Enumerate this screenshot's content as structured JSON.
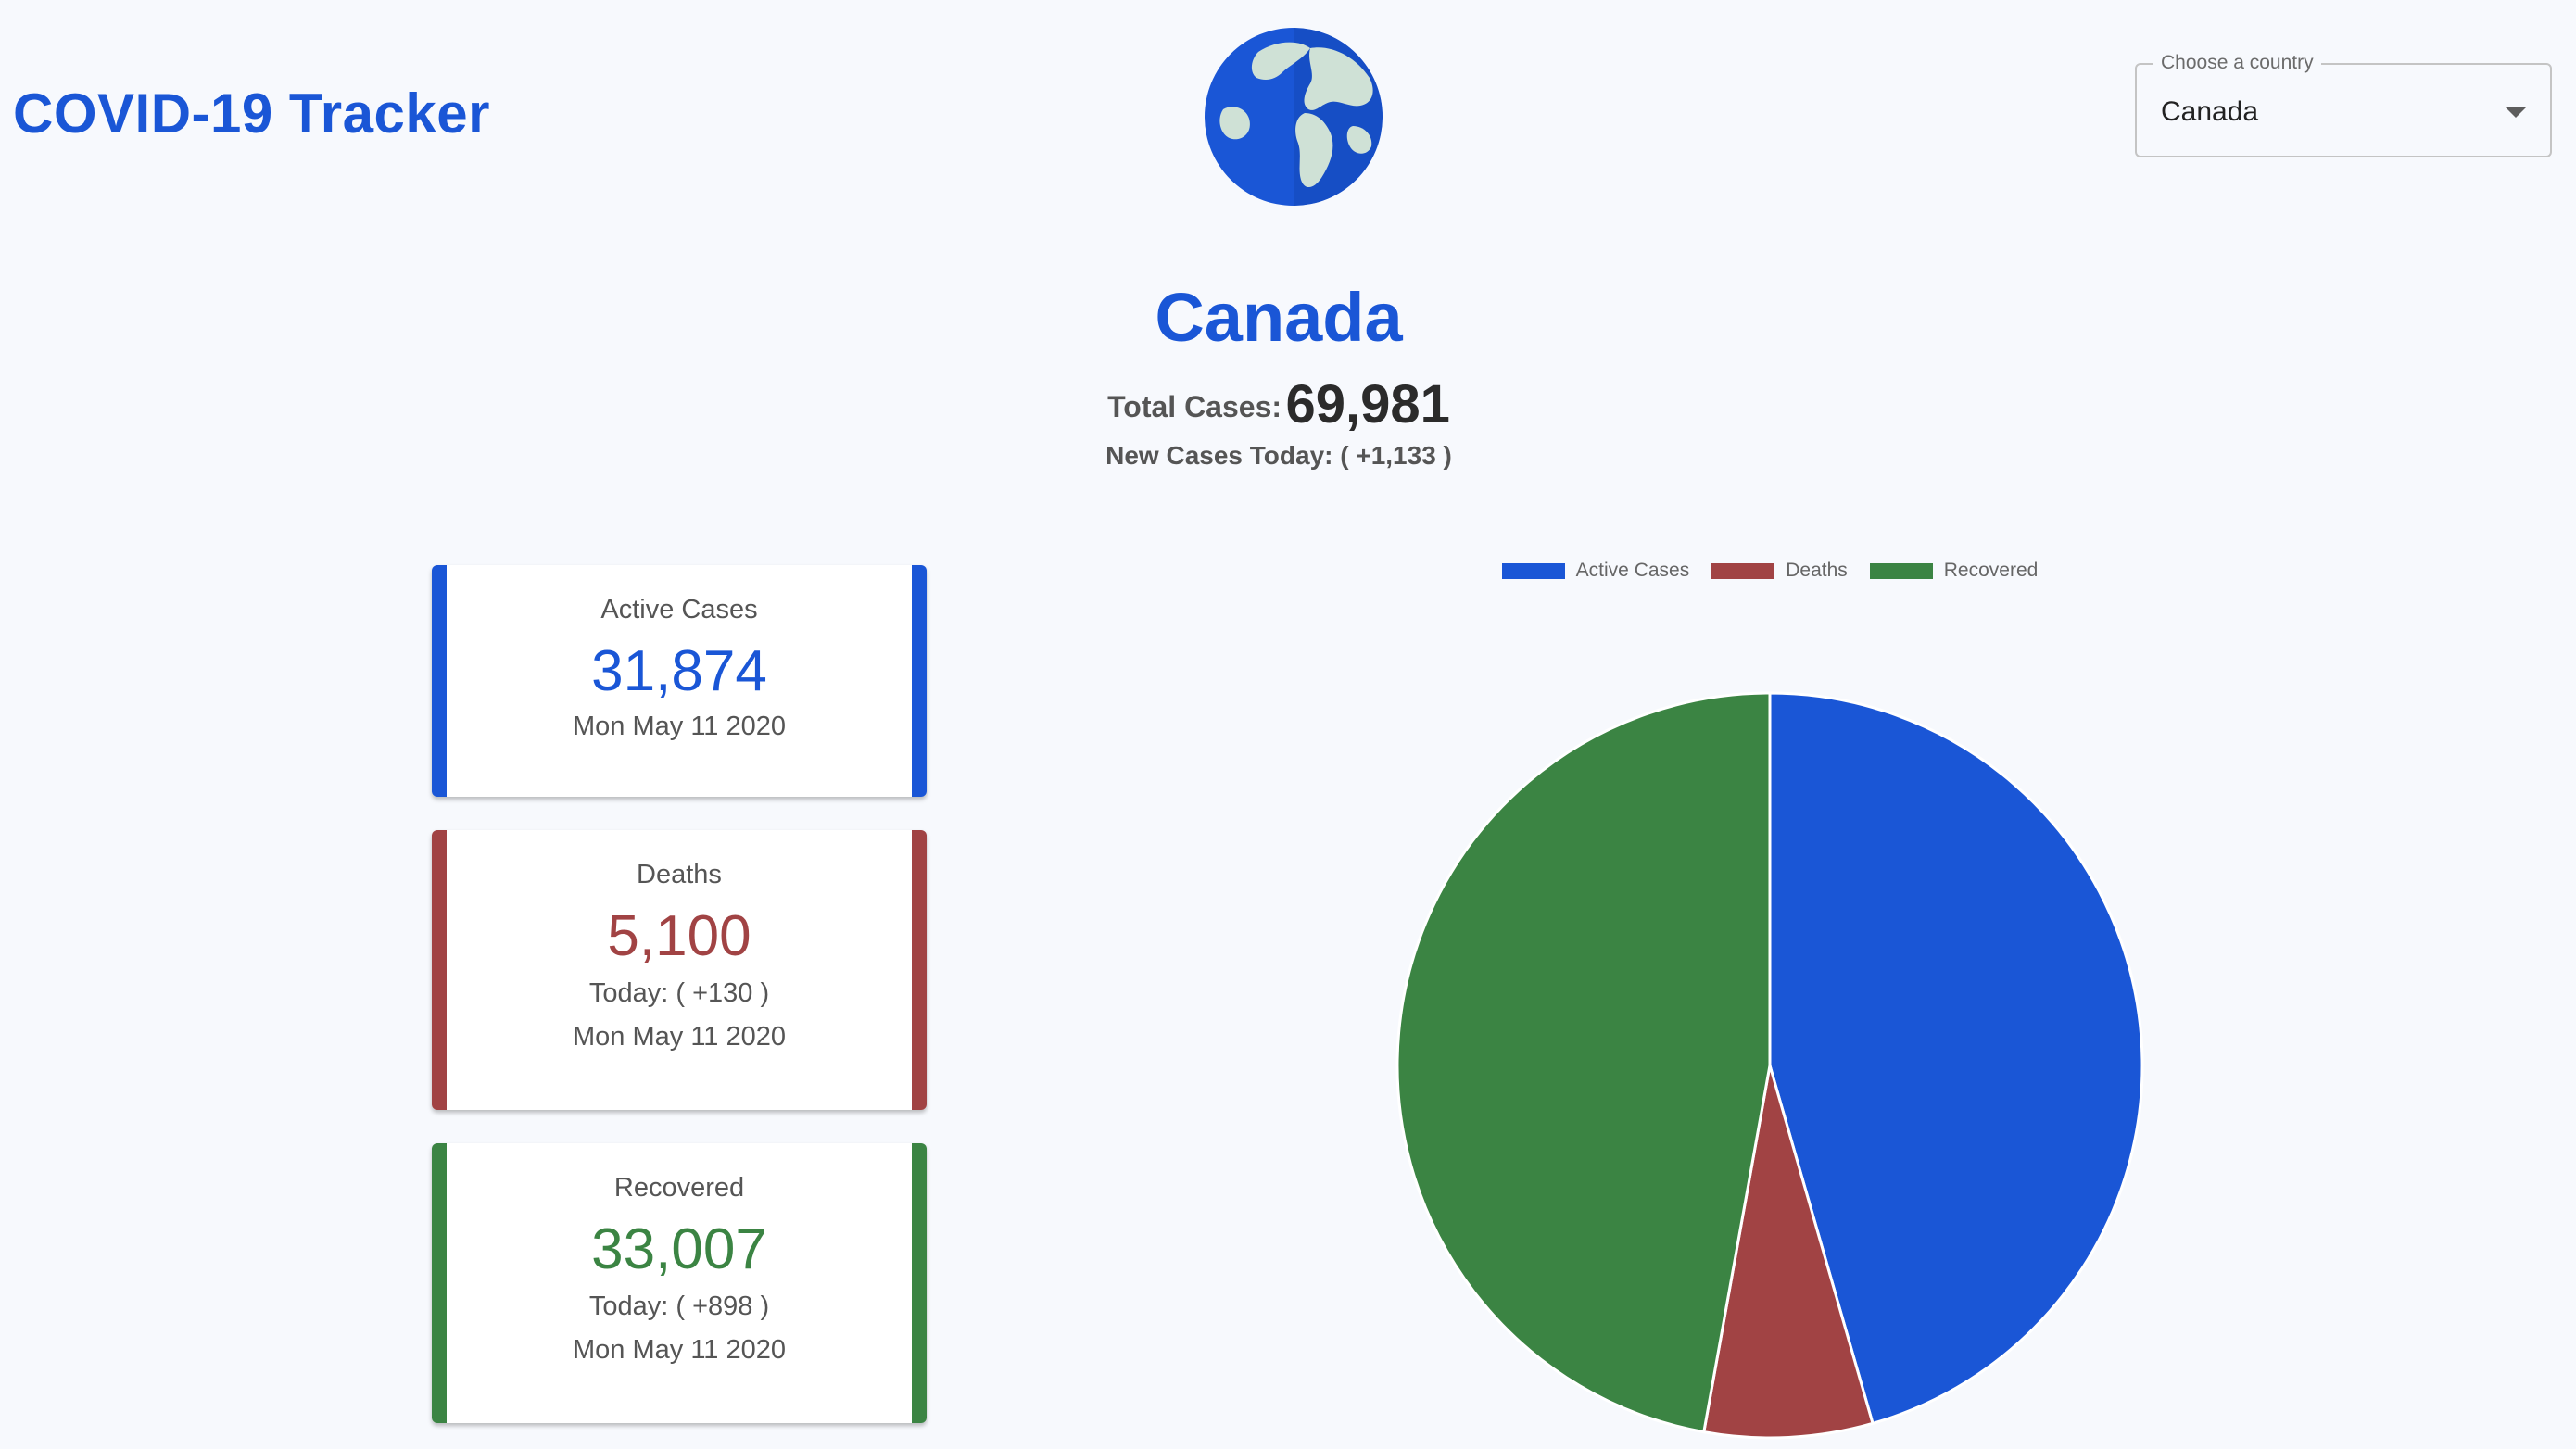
{
  "header": {
    "title": "COVID-19 Tracker",
    "country_select": {
      "label": "Choose a country",
      "value": "Canada"
    }
  },
  "summary": {
    "country": "Canada",
    "total_label": "Total Cases:",
    "total_value": "69,981",
    "new_cases_text": "New Cases Today: ( +1,133 )"
  },
  "cards": {
    "active": {
      "title": "Active Cases",
      "count": "31,874",
      "date": "Mon May 11 2020"
    },
    "deaths": {
      "title": "Deaths",
      "count": "5,100",
      "today": "Today: ( +130 )",
      "date": "Mon May 11 2020"
    },
    "recovered": {
      "title": "Recovered",
      "count": "33,007",
      "today": "Today: ( +898 )",
      "date": "Mon May 11 2020"
    }
  },
  "colors": {
    "active": "#1a56d6",
    "deaths": "#a14344",
    "recovered": "#3b8443",
    "brand": "#1a56d6"
  },
  "chart_data": {
    "type": "pie",
    "legend_position": "top",
    "categories": [
      "Active Cases",
      "Deaths",
      "Recovered"
    ],
    "values": [
      31874,
      5100,
      33007
    ],
    "colors": [
      "#1a56d6",
      "#a14344",
      "#3b8443"
    ]
  }
}
